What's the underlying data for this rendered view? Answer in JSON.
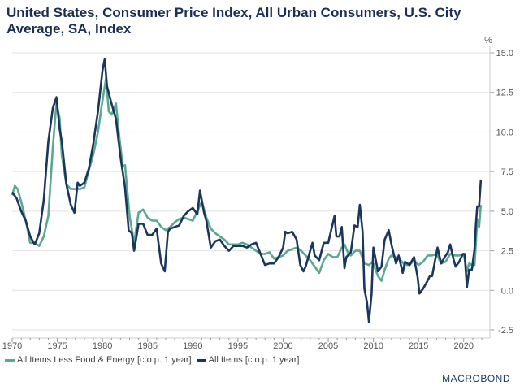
{
  "chart_data": {
    "type": "line",
    "title": "United States, Consumer Price Index, All Urban Consumers, U.S. City Average, SA, Index",
    "ylabel": "%",
    "xlim": [
      1970,
      2022.9
    ],
    "ylim": [
      -2.5,
      15
    ],
    "yticks": [
      "15.0",
      "12.5",
      "10.0",
      "7.5",
      "5.0",
      "2.5",
      "0.0",
      "-2.5"
    ],
    "xticks": [
      "1970",
      "1975",
      "1980",
      "1985",
      "1990",
      "1995",
      "2000",
      "2005",
      "2010",
      "2015",
      "2020"
    ],
    "grid": "horizontal",
    "legend_position": "bottom-left",
    "series": [
      {
        "name": "All Items Less Food & Energy [c.o.p. 1 year]",
        "color": "#5aa88e",
        "x": [
          1970.0,
          1970.3,
          1970.6,
          1971.0,
          1971.5,
          1972.0,
          1972.5,
          1973.0,
          1973.5,
          1974.0,
          1974.5,
          1974.9,
          1975.25,
          1975.5,
          1976.0,
          1976.5,
          1977.0,
          1977.5,
          1978.0,
          1978.5,
          1979.0,
          1979.5,
          1980.0,
          1980.4,
          1980.7,
          1981.0,
          1981.5,
          1981.8,
          1982.25,
          1982.5,
          1983.0,
          1983.5,
          1984.0,
          1984.5,
          1985.0,
          1985.5,
          1986.0,
          1986.5,
          1987.0,
          1987.5,
          1988.0,
          1988.5,
          1989.0,
          1989.5,
          1990.0,
          1990.5,
          1991.0,
          1991.5,
          1992.0,
          1992.5,
          1993.0,
          1993.5,
          1994.0,
          1994.5,
          1995.0,
          1995.5,
          1996.0,
          1996.5,
          1997.0,
          1997.5,
          1998.0,
          1998.5,
          1999.0,
          1999.5,
          2000.0,
          2000.5,
          2001.0,
          2001.5,
          2002.0,
          2002.5,
          2003.0,
          2003.5,
          2004.0,
          2004.5,
          2005.0,
          2005.5,
          2006.0,
          2006.5,
          2006.8,
          2007.25,
          2007.5,
          2008.0,
          2008.5,
          2009.0,
          2009.5,
          2009.9,
          2010.5,
          2010.9,
          2011.25,
          2011.7,
          2012.0,
          2012.5,
          2013.0,
          2013.5,
          2014.0,
          2014.5,
          2015.0,
          2015.5,
          2016.0,
          2016.5,
          2017.0,
          2017.5,
          2018.0,
          2018.5,
          2019.0,
          2019.5,
          2020.0,
          2020.35,
          2020.6,
          2020.9,
          2021.2,
          2021.35,
          2021.5,
          2021.7,
          2021.9
        ],
        "values": [
          6.0,
          6.6,
          6.4,
          5.6,
          4.4,
          3.0,
          3.0,
          2.8,
          3.4,
          4.7,
          9.0,
          11.8,
          10.9,
          8.5,
          6.7,
          6.4,
          6.4,
          6.4,
          6.5,
          7.6,
          8.6,
          10.0,
          12.0,
          13.4,
          11.3,
          11.1,
          11.8,
          10.0,
          7.8,
          7.9,
          4.7,
          3.0,
          4.9,
          5.1,
          4.6,
          4.4,
          4.4,
          4.0,
          3.8,
          4.0,
          4.3,
          4.5,
          4.6,
          4.5,
          4.4,
          5.0,
          5.6,
          4.6,
          3.9,
          3.6,
          3.4,
          3.2,
          2.9,
          2.9,
          2.9,
          3.0,
          2.9,
          2.7,
          2.5,
          2.3,
          2.3,
          2.4,
          2.0,
          2.1,
          2.2,
          2.5,
          2.6,
          2.7,
          2.5,
          2.2,
          1.9,
          1.5,
          1.1,
          1.9,
          2.3,
          2.1,
          2.1,
          2.7,
          2.9,
          2.3,
          2.2,
          2.5,
          2.5,
          1.7,
          1.6,
          1.8,
          0.9,
          0.6,
          1.3,
          2.0,
          2.2,
          2.1,
          1.9,
          1.6,
          1.6,
          1.9,
          1.6,
          1.8,
          2.2,
          2.2,
          2.3,
          1.7,
          1.8,
          2.3,
          2.2,
          2.2,
          2.3,
          1.2,
          1.7,
          1.6,
          1.6,
          3.0,
          4.5,
          4.0,
          5.4
        ]
      },
      {
        "name": "All Items [c.o.p. 1 year]",
        "color": "#1b365d",
        "x": [
          1970.0,
          1970.5,
          1971.0,
          1971.5,
          1972.0,
          1972.5,
          1973.0,
          1973.5,
          1974.0,
          1974.5,
          1974.9,
          1975.25,
          1975.5,
          1976.0,
          1976.5,
          1976.9,
          1977.25,
          1977.5,
          1978.0,
          1978.5,
          1979.0,
          1979.5,
          1980.0,
          1980.25,
          1980.5,
          1981.0,
          1981.5,
          1982.0,
          1982.5,
          1982.9,
          1983.25,
          1983.5,
          1984.0,
          1984.5,
          1985.0,
          1985.5,
          1986.0,
          1986.5,
          1986.9,
          1987.25,
          1987.5,
          1988.0,
          1988.5,
          1989.0,
          1989.5,
          1990.0,
          1990.5,
          1990.8,
          1991.25,
          1991.5,
          1992.0,
          1992.5,
          1993.0,
          1993.5,
          1994.0,
          1994.5,
          1995.0,
          1995.5,
          1996.0,
          1996.5,
          1997.0,
          1997.5,
          1998.0,
          1998.5,
          1999.0,
          1999.5,
          2000.0,
          2000.25,
          2000.5,
          2001.0,
          2001.5,
          2001.9,
          2002.25,
          2002.5,
          2003.0,
          2003.25,
          2003.5,
          2004.0,
          2004.5,
          2005.0,
          2005.7,
          2005.9,
          2006.25,
          2006.5,
          2006.8,
          2007.0,
          2007.5,
          2007.9,
          2008.25,
          2008.5,
          2008.8,
          2009.0,
          2009.3,
          2009.5,
          2009.8,
          2010.0,
          2010.5,
          2010.9,
          2011.25,
          2011.7,
          2012.0,
          2012.5,
          2012.8,
          2013.25,
          2013.5,
          2014.0,
          2014.5,
          2014.9,
          2015.1,
          2015.5,
          2015.9,
          2016.25,
          2016.5,
          2016.9,
          2017.1,
          2017.5,
          2017.9,
          2018.25,
          2018.5,
          2018.9,
          2019.1,
          2019.5,
          2019.9,
          2020.1,
          2020.35,
          2020.6,
          2020.9,
          2021.2,
          2021.35,
          2021.5,
          2021.7,
          2021.9
        ],
        "values": [
          6.2,
          5.8,
          5.0,
          4.4,
          3.4,
          2.9,
          3.6,
          5.7,
          9.4,
          11.5,
          12.2,
          10.2,
          9.4,
          6.7,
          5.4,
          4.9,
          6.8,
          6.6,
          6.8,
          7.7,
          9.3,
          11.3,
          13.9,
          14.6,
          12.9,
          11.8,
          10.8,
          8.4,
          6.5,
          3.8,
          3.6,
          2.5,
          4.2,
          4.2,
          3.5,
          3.5,
          3.9,
          1.7,
          1.2,
          3.7,
          3.9,
          4.0,
          4.1,
          4.7,
          5.0,
          5.2,
          4.8,
          6.3,
          4.9,
          4.4,
          2.7,
          3.1,
          3.2,
          2.8,
          2.5,
          2.8,
          2.8,
          2.8,
          2.7,
          2.9,
          3.0,
          2.3,
          1.6,
          1.7,
          1.7,
          2.1,
          2.7,
          3.7,
          3.6,
          3.7,
          3.2,
          1.6,
          1.2,
          1.5,
          2.5,
          3.0,
          2.2,
          1.9,
          3.0,
          3.0,
          4.7,
          3.4,
          3.4,
          4.0,
          1.4,
          2.1,
          2.4,
          4.1,
          4.0,
          5.4,
          3.7,
          0.1,
          -0.8,
          -2.0,
          -0.2,
          2.7,
          1.2,
          1.5,
          3.2,
          3.8,
          2.9,
          1.7,
          2.2,
          1.1,
          1.8,
          1.6,
          2.1,
          0.8,
          -0.2,
          0.1,
          0.5,
          0.9,
          0.9,
          2.1,
          2.7,
          1.7,
          2.1,
          2.4,
          2.9,
          1.9,
          1.5,
          1.8,
          2.3,
          2.3,
          0.2,
          1.3,
          1.3,
          2.6,
          4.2,
          5.3,
          5.3,
          7.0
        ]
      }
    ]
  },
  "branding": {
    "logo": "MACROBOND"
  }
}
